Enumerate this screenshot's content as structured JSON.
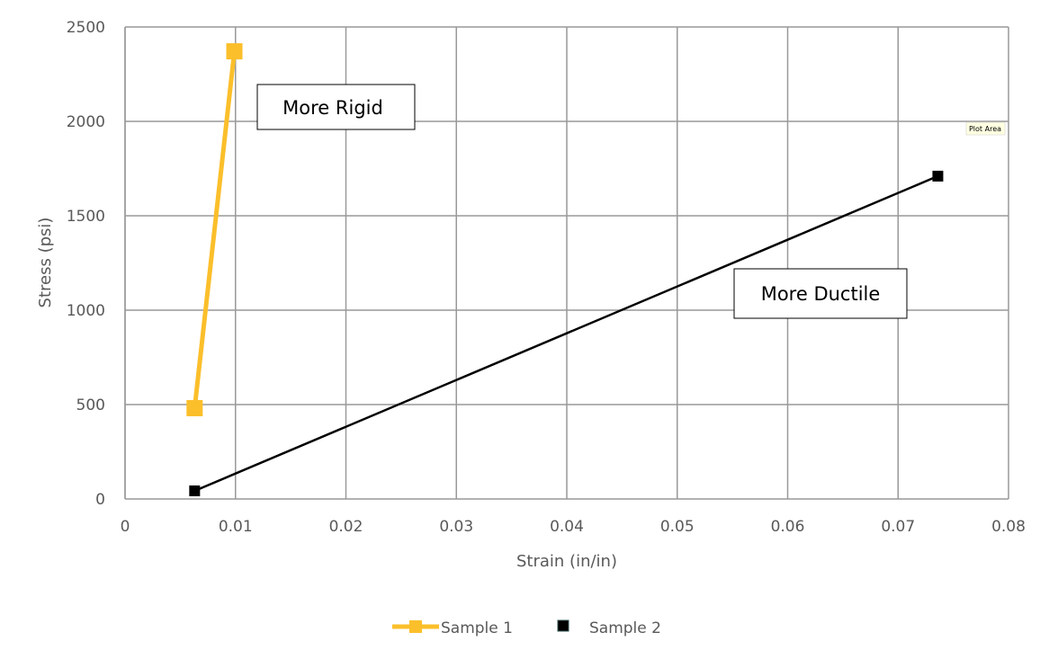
{
  "chart_data": {
    "type": "line",
    "title": "",
    "xlabel": "Strain (in/in)",
    "ylabel": "Stress (psi)",
    "xlim": [
      0,
      0.08
    ],
    "ylim": [
      0,
      2500
    ],
    "x_ticks": [
      "0",
      "0.01",
      "0.02",
      "0.03",
      "0.04",
      "0.05",
      "0.06",
      "0.07",
      "0.08"
    ],
    "y_ticks": [
      "0",
      "500",
      "1000",
      "1500",
      "2000",
      "2500"
    ],
    "grid": true,
    "legend_position": "bottom",
    "series": [
      {
        "name": "Sample 1",
        "color": "#FBBF2B",
        "line": true,
        "points": [
          {
            "x": 0.0063,
            "y": 481
          },
          {
            "x": 0.0099,
            "y": 2371
          }
        ]
      },
      {
        "name": "Sample 2",
        "color": "#000000",
        "line": true,
        "points": [
          {
            "x": 0.0063,
            "y": 43
          },
          {
            "x": 0.0736,
            "y": 1710
          }
        ]
      }
    ],
    "annotations": [
      "More Rigid",
      "More Ductile"
    ],
    "tooltip": "Plot Area"
  }
}
